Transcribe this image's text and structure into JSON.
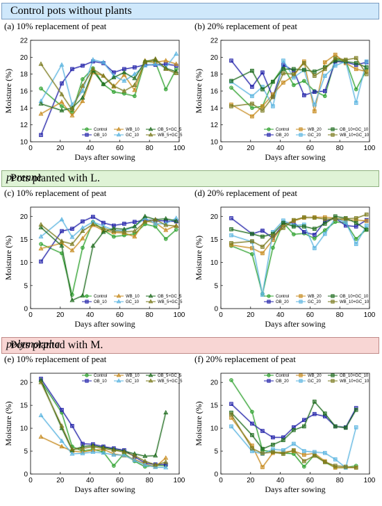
{
  "sections": [
    {
      "title_parts": [
        "Control pots without plants",
        ""
      ],
      "color": "#cfe8fb",
      "border": "#7a9cc0"
    },
    {
      "title_parts": [
        "Pots planted with L. ",
        "perenne"
      ],
      "color": "#dff3d6",
      "border": "#8fb080"
    },
    {
      "title_parts": [
        "Pots planted with M. ",
        "polymorpha"
      ],
      "color": "#f8d6d4",
      "border": "#c08a88"
    }
  ],
  "series_styles": {
    "Control": {
      "color": "#2ca02c",
      "marker": "circle"
    },
    "OB_10": {
      "color": "#1f1fa8",
      "marker": "square"
    },
    "WB_10": {
      "color": "#c68a1e",
      "marker": "triangle"
    },
    "GC_10": {
      "color": "#5ab4e0",
      "marker": "triangle"
    },
    "OB_5+GC_5": {
      "color": "#1e6b1e",
      "marker": "triangle"
    },
    "WB_5+GC_5": {
      "color": "#7a7a1e",
      "marker": "triangle"
    },
    "OB_20": {
      "color": "#1f1fa8",
      "marker": "square"
    },
    "WB_20": {
      "color": "#c68a1e",
      "marker": "square"
    },
    "GC_20": {
      "color": "#5ab4e0",
      "marker": "square"
    },
    "OB_10+GC_10": {
      "color": "#1e6b1e",
      "marker": "square"
    },
    "WB_10+GC_10": {
      "color": "#7a7a1e",
      "marker": "square"
    }
  },
  "chart_data": [
    {
      "type": "line",
      "title": "(a) 10% replacement of peat",
      "xlabel": "Days after sowing",
      "ylabel": "Moisture (%)",
      "xlim": [
        0,
        100
      ],
      "ylim": [
        10,
        22
      ],
      "xticks": [
        0,
        20,
        40,
        60,
        80,
        100
      ],
      "yticks": [
        10,
        12,
        14,
        16,
        18,
        20,
        22
      ],
      "x": [
        7,
        21,
        28,
        35,
        42,
        49,
        56,
        63,
        70,
        77,
        84,
        91,
        98
      ],
      "series": [
        {
          "name": "Control",
          "values": [
            16.3,
            14.2,
            13.5,
            17.4,
            18.7,
            16.8,
            15.9,
            15.7,
            15.4,
            19.5,
            19.4,
            16.2,
            18.6
          ]
        },
        {
          "name": "OB_10",
          "values": [
            10.8,
            16.9,
            18.6,
            19.0,
            19.5,
            19.3,
            18.2,
            18.6,
            18.8,
            19.1,
            19.1,
            19.2,
            19.0
          ]
        },
        {
          "name": "WB_10",
          "values": [
            13.3,
            14.7,
            13.1,
            14.8,
            18.2,
            17.8,
            16.5,
            17.9,
            16.1,
            19.6,
            19.4,
            19.6,
            19.2
          ]
        },
        {
          "name": "GC_10",
          "values": [
            14.8,
            19.1,
            14.4,
            16.0,
            19.7,
            19.4,
            17.8,
            17.2,
            18.0,
            19.0,
            19.2,
            18.8,
            20.4
          ]
        },
        {
          "name": "OB_5+GC_5",
          "values": [
            14.5,
            13.7,
            14.0,
            15.2,
            18.4,
            16.8,
            17.6,
            18.2,
            17.5,
            19.5,
            19.7,
            18.7,
            18.3
          ]
        },
        {
          "name": "WB_5+GC_5",
          "values": [
            19.2,
            15.6,
            13.8,
            16.6,
            18.6,
            17.8,
            16.6,
            16.0,
            16.7,
            19.4,
            19.8,
            18.6,
            18.1
          ]
        }
      ],
      "legend": [
        "Control",
        "OB_10",
        "WB_10",
        "GC_10",
        "OB_5+GC_5",
        "WB_5+GC_5"
      ]
    },
    {
      "type": "line",
      "title": "(b) 20% replacement of peat",
      "xlabel": "Days after sowing",
      "ylabel": "Moisture (%)",
      "xlim": [
        0,
        100
      ],
      "ylim": [
        10,
        22
      ],
      "xticks": [
        0,
        20,
        40,
        60,
        80,
        100
      ],
      "yticks": [
        10,
        12,
        14,
        16,
        18,
        20,
        22
      ],
      "x": [
        7,
        21,
        28,
        35,
        42,
        49,
        56,
        63,
        70,
        77,
        84,
        91,
        98
      ],
      "series": [
        {
          "name": "Control",
          "values": [
            16.4,
            14.0,
            14.2,
            17.1,
            18.9,
            16.7,
            17.2,
            16.0,
            15.4,
            19.8,
            19.6,
            16.2,
            18.5
          ]
        },
        {
          "name": "OB_20",
          "values": [
            19.6,
            16.5,
            18.2,
            15.3,
            19.1,
            18.4,
            15.5,
            15.9,
            16.0,
            19.5,
            19.4,
            19.1,
            19.4
          ]
        },
        {
          "name": "WB_20",
          "values": [
            14.4,
            13.0,
            14.2,
            15.6,
            17.0,
            17.8,
            19.5,
            13.6,
            19.4,
            20.3,
            19.3,
            18.6,
            18.3
          ]
        },
        {
          "name": "GC_20",
          "values": [
            17.1,
            15.4,
            16.5,
            14.2,
            19.6,
            17.6,
            18.5,
            14.4,
            17.8,
            19.0,
            19.5,
            14.6,
            19.5
          ]
        },
        {
          "name": "OB_10+GC_10",
          "values": [
            17.2,
            18.4,
            16.2,
            17.1,
            18.6,
            18.6,
            18.5,
            18.3,
            18.8,
            19.6,
            19.5,
            19.3,
            18.8
          ]
        },
        {
          "name": "WB_10+GC_10",
          "values": [
            14.2,
            14.5,
            13.7,
            15.3,
            18.1,
            18.0,
            19.3,
            17.8,
            18.6,
            19.9,
            19.7,
            19.9,
            18.0
          ]
        }
      ],
      "legend": [
        "Control",
        "OB_20",
        "WB_20",
        "GC_20",
        "OB_10+GC_10",
        "WB_10+GC_10"
      ]
    },
    {
      "type": "line",
      "title": "(c) 10% replacement of peat",
      "xlabel": "Days after sowing",
      "ylabel": "Moisture (%)",
      "xlim": [
        0,
        100
      ],
      "ylim": [
        0,
        22
      ],
      "xticks": [
        0,
        20,
        40,
        60,
        80,
        100
      ],
      "yticks": [
        0,
        5,
        10,
        15,
        20
      ],
      "x": [
        7,
        21,
        28,
        35,
        42,
        49,
        56,
        63,
        70,
        77,
        84,
        91,
        98
      ],
      "series": [
        {
          "name": "Control",
          "values": [
            14.0,
            12.0,
            3.0,
            13.2,
            18.8,
            17.0,
            15.6,
            15.9,
            16.2,
            18.3,
            17.8,
            15.1,
            17.1
          ]
        },
        {
          "name": "OB_10",
          "values": [
            10.2,
            16.8,
            17.3,
            18.9,
            19.9,
            18.6,
            18.0,
            18.4,
            18.8,
            19.2,
            19.1,
            19.0,
            18.9
          ]
        },
        {
          "name": "WB_10",
          "values": [
            13.0,
            14.2,
            12.6,
            15.2,
            18.1,
            16.9,
            16.5,
            16.4,
            15.6,
            19.0,
            18.6,
            17.0,
            18.0
          ]
        },
        {
          "name": "GC_10",
          "values": [
            15.6,
            19.3,
            15.5,
            17.5,
            18.8,
            17.9,
            17.0,
            16.9,
            17.8,
            19.6,
            18.4,
            18.4,
            19.6
          ]
        },
        {
          "name": "OB_5+GC_5",
          "values": [
            17.6,
            13.6,
            1.8,
            2.8,
            13.6,
            16.6,
            17.4,
            17.2,
            17.8,
            20.0,
            19.3,
            19.5,
            19.0
          ]
        },
        {
          "name": "WB_5+GC_5",
          "values": [
            18.2,
            14.6,
            14.0,
            16.8,
            18.3,
            17.4,
            16.8,
            16.6,
            16.8,
            18.8,
            19.3,
            18.1,
            17.9
          ]
        }
      ],
      "legend": [
        "Control",
        "OB_10",
        "WB_10",
        "GC_10",
        "OB_5+GC_5",
        "WB_5+GC_5"
      ]
    },
    {
      "type": "line",
      "title": "(d) 20% replacement of peat",
      "xlabel": "Days after sowing",
      "ylabel": "Moisture (%)",
      "xlim": [
        0,
        100
      ],
      "ylim": [
        0,
        22
      ],
      "xticks": [
        0,
        20,
        40,
        60,
        80,
        100
      ],
      "yticks": [
        0,
        5,
        10,
        15,
        20
      ],
      "x": [
        7,
        21,
        28,
        35,
        42,
        49,
        56,
        63,
        70,
        77,
        84,
        91,
        98
      ],
      "series": [
        {
          "name": "Control",
          "values": [
            13.6,
            11.8,
            3.2,
            13.2,
            18.6,
            16.1,
            16.3,
            15.2,
            17.0,
            18.8,
            18.6,
            15.1,
            17.2
          ]
        },
        {
          "name": "OB_20",
          "values": [
            19.6,
            16.2,
            16.9,
            15.3,
            18.4,
            18.7,
            16.6,
            16.0,
            18.9,
            19.6,
            18.0,
            17.8,
            19.2
          ]
        },
        {
          "name": "WB_20",
          "values": [
            13.8,
            13.1,
            12.0,
            14.9,
            18.2,
            19.0,
            19.7,
            19.8,
            19.8,
            19.6,
            19.1,
            19.2,
            19.0
          ]
        },
        {
          "name": "GC_20",
          "values": [
            15.9,
            14.5,
            3.0,
            16.6,
            19.1,
            18.0,
            18.2,
            13.1,
            16.2,
            19.6,
            18.7,
            14.0,
            18.0
          ]
        },
        {
          "name": "OB_10+GC_10",
          "values": [
            17.2,
            16.2,
            15.6,
            16.2,
            18.6,
            17.8,
            17.8,
            17.3,
            18.4,
            20.0,
            19.6,
            18.6,
            17.1
          ]
        },
        {
          "name": "WB_10+GC_10",
          "values": [
            14.2,
            14.6,
            13.4,
            15.8,
            17.5,
            19.2,
            19.8,
            19.7,
            19.4,
            19.4,
            19.5,
            19.6,
            20.4
          ]
        }
      ],
      "legend": [
        "Control",
        "OB_20",
        "WB_20",
        "GC_20",
        "OB_10+GC_10",
        "WB_10+GC_10"
      ]
    },
    {
      "type": "line",
      "title": "(e) 10% replacement of peat",
      "xlabel": "Days after sowing",
      "ylabel": "Moisture (%)",
      "xlim": [
        0,
        100
      ],
      "ylim": [
        0,
        22
      ],
      "xticks": [
        0,
        20,
        40,
        60,
        80,
        100
      ],
      "yticks": [
        0,
        5,
        10,
        15,
        20
      ],
      "x": [
        7,
        21,
        28,
        35,
        42,
        49,
        56,
        63,
        70,
        77,
        84,
        91
      ],
      "series": [
        {
          "name": "Control",
          "values": [
            20.3,
            13.4,
            6.0,
            5.0,
            5.4,
            4.8,
            1.8,
            4.5,
            2.8,
            1.6,
            1.9,
            1.8
          ]
        },
        {
          "name": "OB_10",
          "values": [
            20.8,
            14.0,
            10.5,
            6.6,
            6.5,
            6.0,
            5.6,
            5.2,
            3.8,
            2.4,
            2.1,
            2.1
          ]
        },
        {
          "name": "WB_10",
          "values": [
            8.1,
            6.0,
            5.0,
            4.8,
            5.2,
            5.4,
            4.4,
            4.0,
            3.2,
            2.2,
            1.6,
            3.5
          ]
        },
        {
          "name": "GC_10",
          "values": [
            12.8,
            7.2,
            4.4,
            4.5,
            4.8,
            4.6,
            4.2,
            4.1,
            3.0,
            2.0,
            1.5,
            1.4
          ]
        },
        {
          "name": "OB_5+GC_5",
          "values": [
            20.5,
            10.0,
            5.2,
            6.0,
            6.2,
            5.8,
            5.4,
            5.0,
            4.4,
            3.9,
            4.0,
            13.4
          ]
        },
        {
          "name": "WB_5+GC_5",
          "values": [
            20.0,
            10.5,
            5.4,
            5.6,
            6.0,
            5.6,
            5.2,
            4.8,
            4.0,
            2.8,
            2.0,
            2.6
          ]
        }
      ],
      "legend": [
        "Control",
        "OB_10",
        "WB_10",
        "GC_10",
        "OB_5+GC_5",
        "WB_5+GC_5"
      ]
    },
    {
      "type": "line",
      "title": "(f) 20% replacement of peat",
      "xlabel": "Days after sowing",
      "ylabel": "Moisture (%)",
      "xlim": [
        0,
        100
      ],
      "ylim": [
        0,
        22
      ],
      "xticks": [
        0,
        20,
        40,
        60,
        80,
        100
      ],
      "yticks": [
        0,
        5,
        10,
        15,
        20
      ],
      "x": [
        7,
        21,
        28,
        35,
        42,
        49,
        56,
        63,
        70,
        77,
        84,
        91
      ],
      "series": [
        {
          "name": "Control",
          "values": [
            20.5,
            13.6,
            5.2,
            4.8,
            4.6,
            4.4,
            1.6,
            4.2,
            2.6,
            1.4,
            1.4,
            1.8
          ]
        },
        {
          "name": "OB_20",
          "values": [
            15.3,
            11.0,
            9.4,
            8.0,
            8.0,
            10.2,
            11.8,
            13.1,
            12.6,
            10.4,
            10.2,
            14.4
          ]
        },
        {
          "name": "WB_20",
          "values": [
            12.3,
            6.2,
            1.5,
            4.6,
            4.8,
            5.0,
            4.2,
            4.5,
            2.8,
            1.4,
            1.4,
            1.4
          ]
        },
        {
          "name": "GC_20",
          "values": [
            10.4,
            5.0,
            4.4,
            5.4,
            5.2,
            6.6,
            5.0,
            4.8,
            4.6,
            3.2,
            1.4,
            10.2
          ]
        },
        {
          "name": "OB_10+GC_10",
          "values": [
            13.4,
            8.5,
            5.5,
            6.4,
            7.4,
            9.6,
            10.4,
            15.8,
            13.2,
            10.4,
            10.1,
            14.0
          ]
        },
        {
          "name": "WB_10+GC_10",
          "values": [
            13.0,
            5.6,
            4.5,
            4.8,
            4.4,
            5.2,
            2.8,
            4.0,
            2.6,
            1.8,
            1.6,
            1.4
          ]
        }
      ],
      "legend": [
        "Control",
        "OB_20",
        "WB_20",
        "GC_20",
        "OB_10+GC_10",
        "WB_10+GC_10"
      ]
    }
  ]
}
